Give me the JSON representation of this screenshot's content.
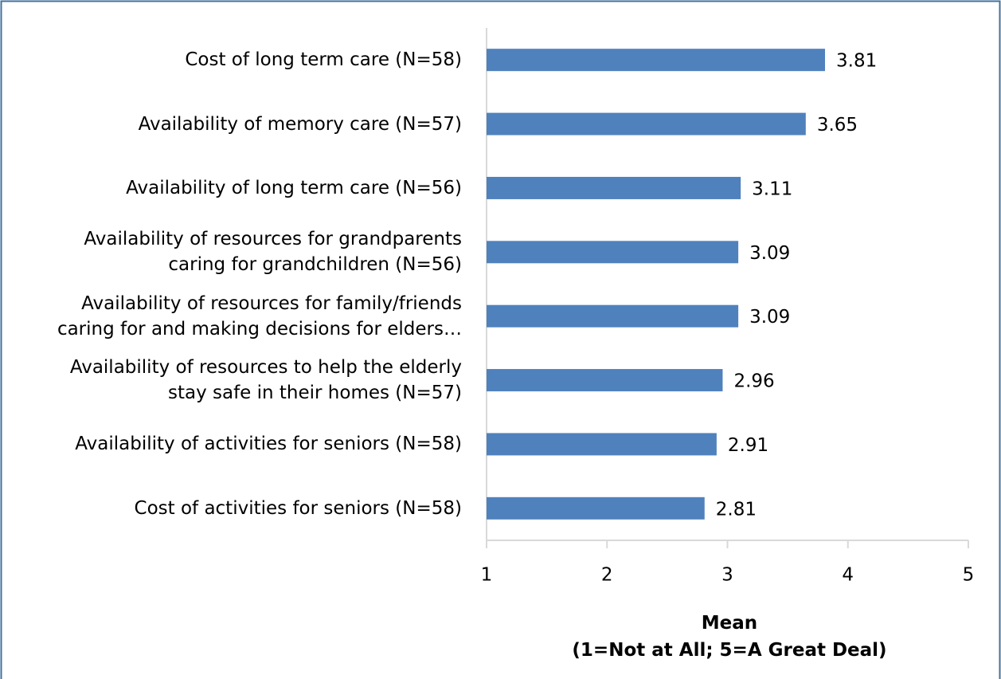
{
  "chart_data": {
    "type": "bar",
    "orientation": "horizontal",
    "categories": [
      "Cost of long term care (N=58)",
      "Availability of memory care (N=57)",
      "Availability of long term care (N=56)",
      "Availability of resources for grandparents\ncaring for grandchildren (N=56)",
      "Availability of resources for family/friends\ncaring for and making decisions for elders…",
      "Availability of resources to help the elderly\nstay safe in their homes (N=57)",
      "Availability of activities for seniors (N=58)",
      "Cost of activities for seniors (N=58)"
    ],
    "values": [
      3.81,
      3.65,
      3.11,
      3.09,
      3.09,
      2.96,
      2.91,
      2.81
    ],
    "color": "#4f81bd",
    "xlim": [
      1,
      5
    ],
    "xticks": [
      1,
      2,
      3,
      4,
      5
    ],
    "x_label": "Mean\n(1=Not at All; 5=A Great Deal)"
  }
}
